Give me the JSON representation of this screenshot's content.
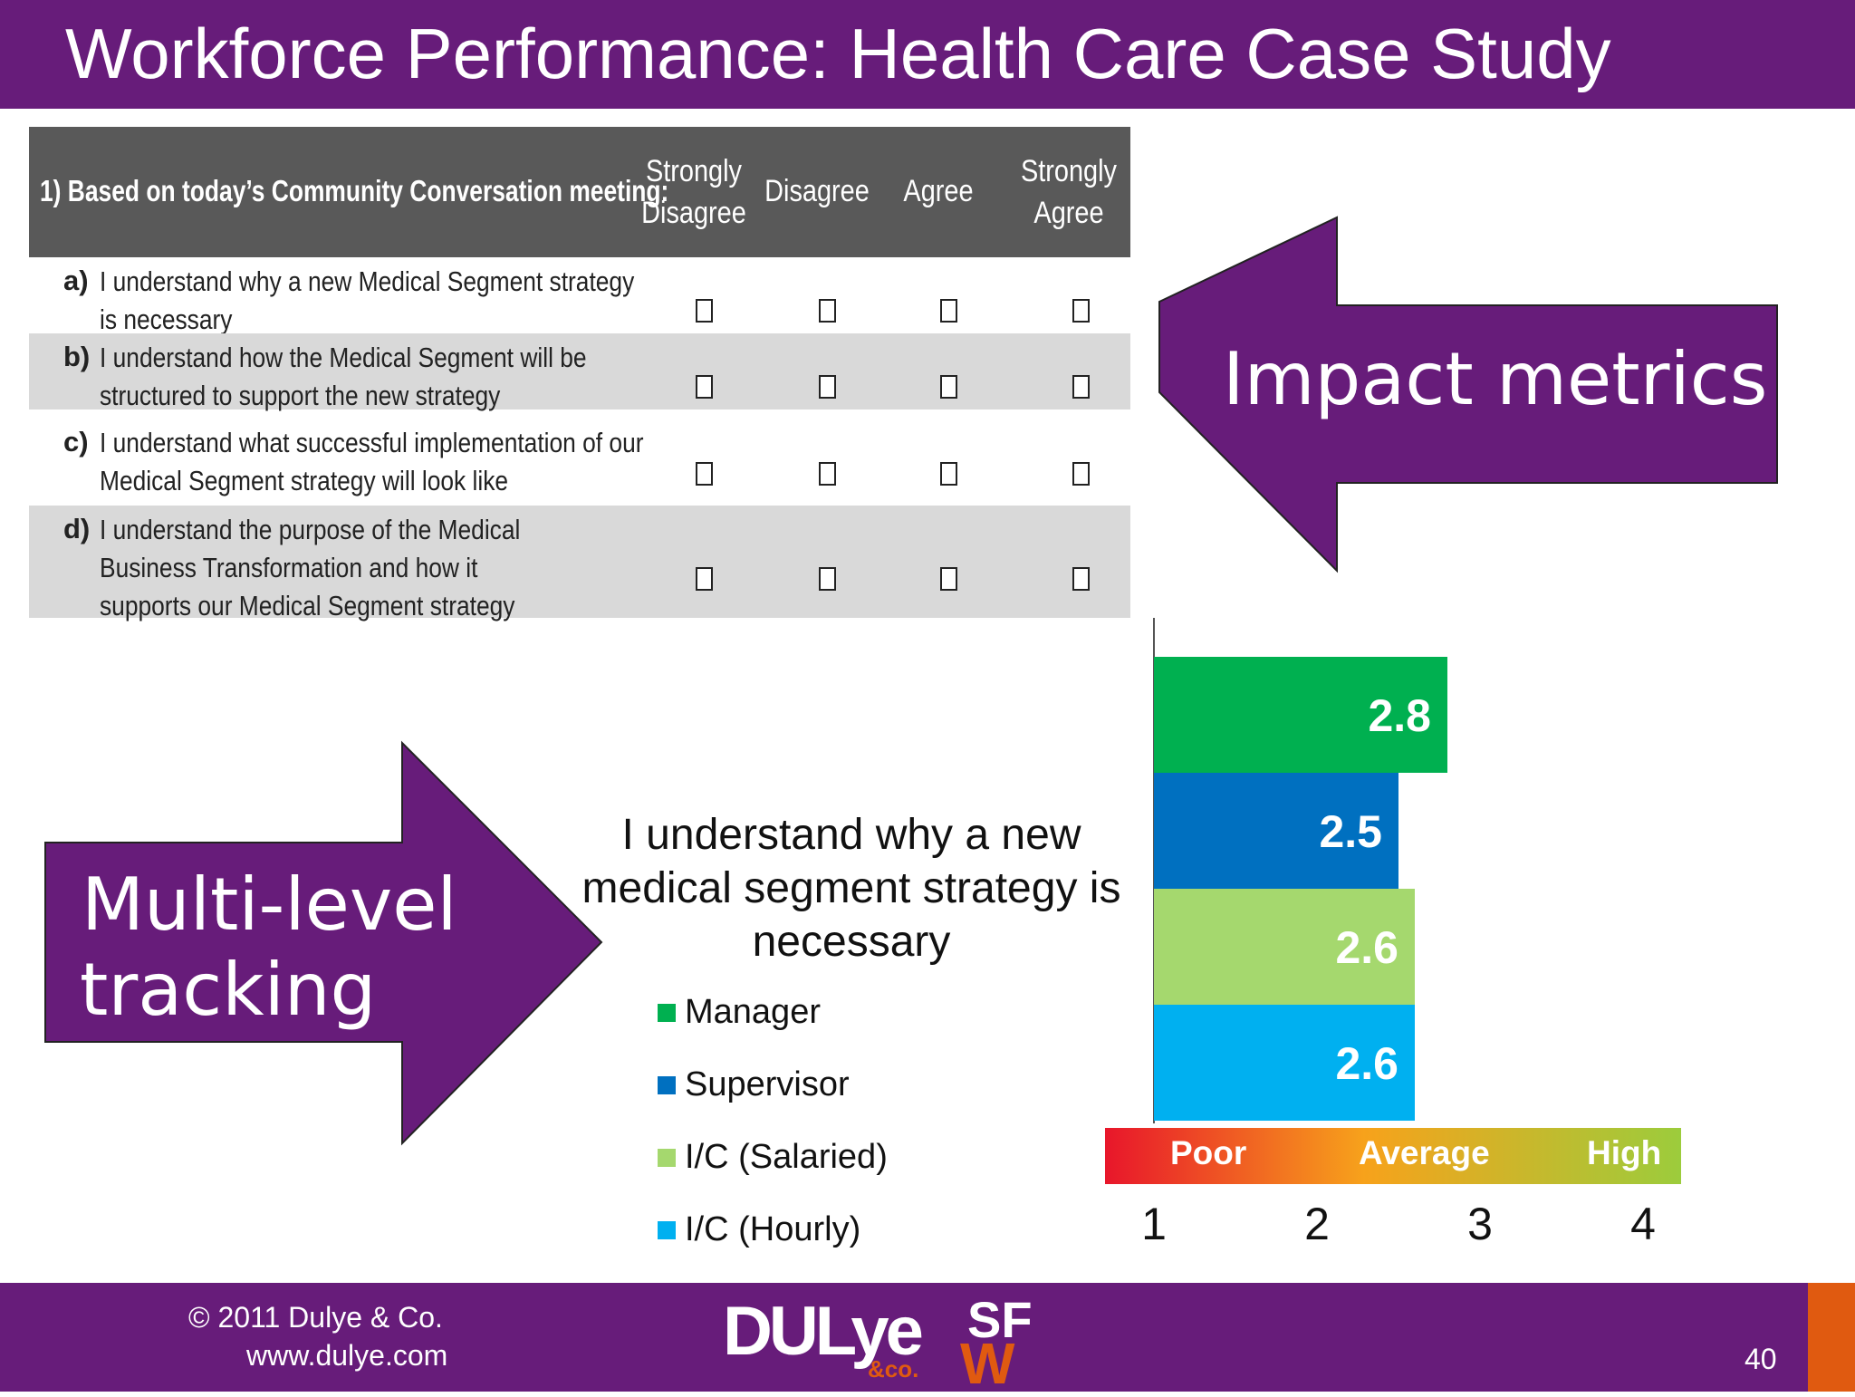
{
  "title": "Workforce Performance: Health Care Case Study",
  "survey": {
    "question": "1)  Based on today’s Community Conversation meeting:",
    "columns": [
      "Strongly Disagree",
      "Disagree",
      "Agree",
      "Strongly Agree"
    ],
    "rows": [
      {
        "letter": "a)",
        "text": "I understand why a new Medical Segment strategy is necessary"
      },
      {
        "letter": "b)",
        "text": "I understand how the Medical Segment will be structured to support the new strategy"
      },
      {
        "letter": "c)",
        "text": "I understand what successful implementation of our Medical Segment strategy will look like"
      },
      {
        "letter": "d)",
        "text": "I understand the purpose of the Medical Business Transformation and how it supports our Medical Segment strategy"
      }
    ]
  },
  "callouts": {
    "impact": "Impact metrics",
    "multi_line1": "Multi-level",
    "multi_line2": "tracking"
  },
  "chart_data": {
    "type": "bar",
    "orientation": "horizontal",
    "title": "I understand why a new medical segment strategy is necessary",
    "categories": [
      "Manager",
      "Supervisor",
      "I/C (Salaried)",
      "I/C (Hourly)"
    ],
    "values": [
      2.8,
      2.5,
      2.6,
      2.6
    ],
    "colors": [
      "#00b050",
      "#0070c0",
      "#a5d86e",
      "#00b0f0"
    ],
    "xlim": [
      1,
      4
    ],
    "ticks": [
      "1",
      "2",
      "3",
      "4"
    ],
    "scale_labels": [
      "Poor",
      "Average",
      "High"
    ],
    "legend": [
      "Manager",
      "Supervisor",
      "I/C (Salaried)",
      "I/C (Hourly)"
    ],
    "legend_position": "left",
    "grid": false
  },
  "footer": {
    "copyright": "© 2011 Dulye & Co.",
    "website": "www.dulye.com",
    "page": "40",
    "logo_main": "DULye",
    "logo_co": "&co.",
    "logo_sf": "SF",
    "logo_w": "W"
  },
  "colors": {
    "purple": "#671c7a",
    "accent_orange": "#e05a10",
    "header_gray": "#595959",
    "row_shade": "#d9d9d9"
  }
}
